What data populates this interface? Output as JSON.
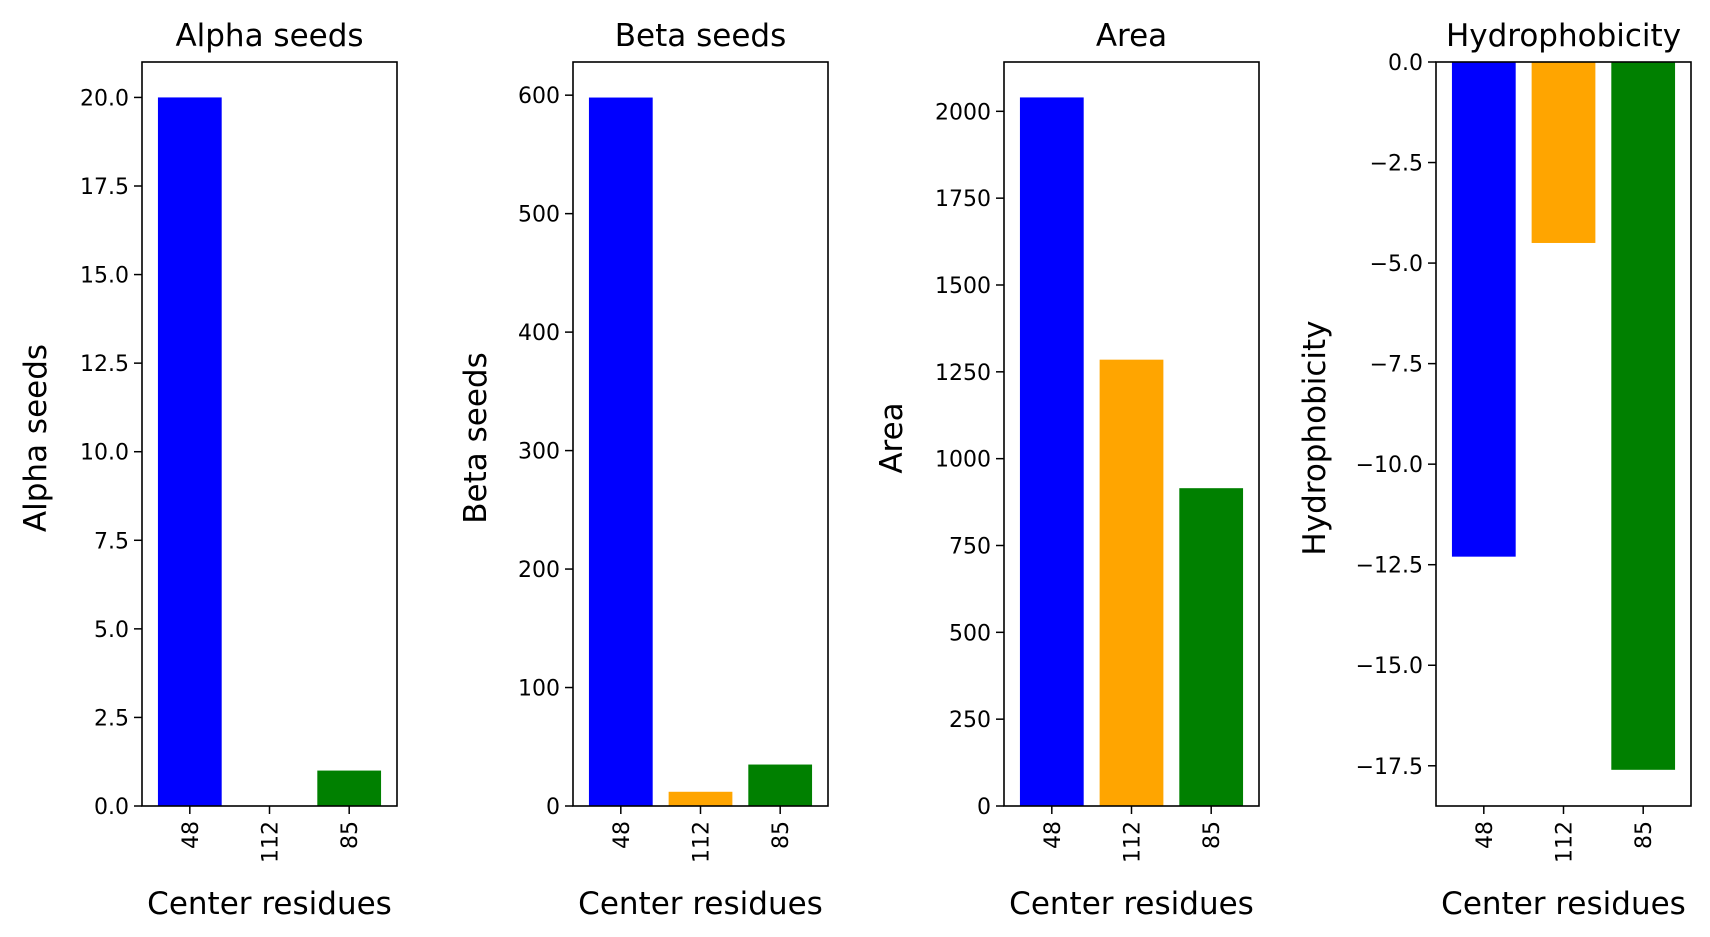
{
  "chart_data": [
    {
      "type": "bar",
      "title": "Alpha seeds",
      "xlabel": "Center residues",
      "ylabel": "Alpha seeds",
      "categories": [
        "48",
        "112",
        "85"
      ],
      "values": [
        20,
        0,
        1
      ],
      "colors": [
        "#0000ff",
        "#ffa500",
        "#008000"
      ],
      "ylim": [
        0,
        21
      ],
      "yticks": [
        0,
        2.5,
        5,
        7.5,
        10,
        12.5,
        15,
        17.5,
        20
      ],
      "ytick_labels": [
        "0.0",
        "2.5",
        "5.0",
        "7.5",
        "10.0",
        "12.5",
        "15.0",
        "17.5",
        "20.0"
      ],
      "grid": false,
      "legend": "none"
    },
    {
      "type": "bar",
      "title": "Beta seeds",
      "xlabel": "Center residues",
      "ylabel": "Beta seeds",
      "categories": [
        "48",
        "112",
        "85"
      ],
      "values": [
        598,
        12,
        35
      ],
      "colors": [
        "#0000ff",
        "#ffa500",
        "#008000"
      ],
      "ylim": [
        0,
        628
      ],
      "yticks": [
        0,
        100,
        200,
        300,
        400,
        500,
        600
      ],
      "ytick_labels": [
        "0",
        "100",
        "200",
        "300",
        "400",
        "500",
        "600"
      ],
      "grid": false,
      "legend": "none"
    },
    {
      "type": "bar",
      "title": "Area",
      "xlabel": "Center residues",
      "ylabel": "Area",
      "categories": [
        "48",
        "112",
        "85"
      ],
      "values": [
        2040,
        1285,
        915
      ],
      "colors": [
        "#0000ff",
        "#ffa500",
        "#008000"
      ],
      "ylim": [
        0,
        2142
      ],
      "yticks": [
        0,
        250,
        500,
        750,
        1000,
        1250,
        1500,
        1750,
        2000
      ],
      "ytick_labels": [
        "0",
        "250",
        "500",
        "750",
        "1000",
        "1250",
        "1500",
        "1750",
        "2000"
      ],
      "grid": false,
      "legend": "none"
    },
    {
      "type": "bar",
      "title": "Hydrophobicity",
      "xlabel": "Center residues",
      "ylabel": "Hydrophobicity",
      "categories": [
        "48",
        "112",
        "85"
      ],
      "values": [
        -12.3,
        -4.5,
        -17.6
      ],
      "colors": [
        "#0000ff",
        "#ffa500",
        "#008000"
      ],
      "ylim": [
        -18.5,
        0
      ],
      "yticks": [
        0,
        -2.5,
        -5,
        -7.5,
        -10,
        -12.5,
        -15,
        -17.5
      ],
      "ytick_labels": [
        "0.0",
        "−2.5",
        "−5.0",
        "−7.5",
        "−10.0",
        "−12.5",
        "−15.0",
        "−17.5"
      ],
      "grid": false,
      "legend": "none"
    }
  ]
}
